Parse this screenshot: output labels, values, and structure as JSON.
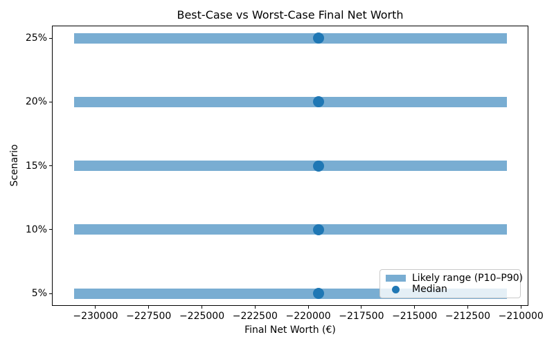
{
  "chart_data": {
    "type": "bar",
    "orientation": "horizontal",
    "style": "range-bar with median marker",
    "title": "Best-Case vs Worst-Case Final Net Worth",
    "xlabel": "Final Net Worth (€)",
    "ylabel": "Scenario",
    "categories": [
      "25%",
      "20%",
      "15%",
      "10%",
      "5%"
    ],
    "series": [
      {
        "name": "Likely range (P10–P90)",
        "type": "range_bar",
        "p10": [
          -231000,
          -231000,
          -231000,
          -231000,
          -231000
        ],
        "p90": [
          -210650,
          -210650,
          -210650,
          -210650,
          -210650
        ]
      },
      {
        "name": "Median",
        "type": "scatter",
        "values": [
          -219500,
          -219500,
          -219500,
          -219500,
          -219500
        ]
      }
    ],
    "xlim": [
      -232050,
      -209650
    ],
    "xticks": [
      -230000,
      -227500,
      -225000,
      -222500,
      -220000,
      -217500,
      -215000,
      -212500,
      -210000
    ],
    "grid": false,
    "legend": {
      "position": "lower right",
      "entries": [
        "Likely range (P10–P90)",
        "Median"
      ]
    },
    "colors": {
      "range_bar": "#79add2",
      "median_dot": "#1f77b4",
      "spine": "#000000",
      "legend_border": "#c9c9c9"
    }
  }
}
